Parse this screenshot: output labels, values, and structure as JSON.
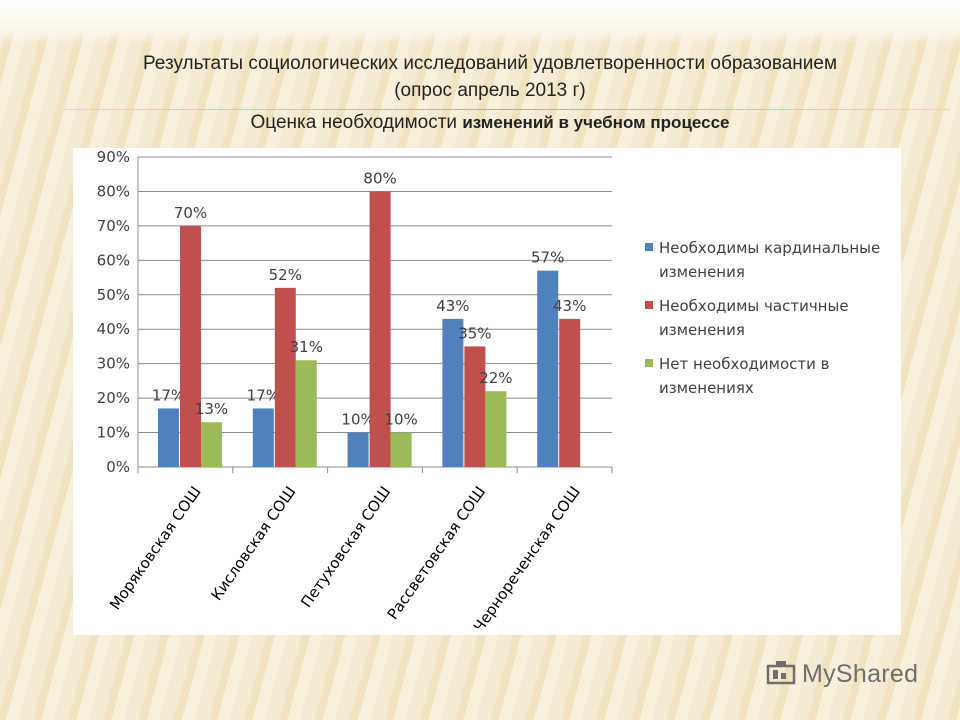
{
  "slide": {
    "title_line1": "Результаты социологических исследований удовлетворенности образованием",
    "title_line2": "(опрос апрель 2013 г)",
    "subtitle_plain": "Оценка необходимости ",
    "subtitle_bold": "изменений в учебном процессе"
  },
  "watermark": {
    "text": "MyShared",
    "icon": "myshared-logo-icon"
  },
  "chart_data": {
    "type": "bar",
    "title": "",
    "xlabel": "",
    "ylabel": "",
    "ylim": [
      0,
      0.9
    ],
    "yticks": [
      0,
      0.1,
      0.2,
      0.3,
      0.4,
      0.5,
      0.6,
      0.7,
      0.8,
      0.9
    ],
    "ytick_labels": [
      "0%",
      "10%",
      "20%",
      "30%",
      "40%",
      "50%",
      "60%",
      "70%",
      "80%",
      "90%"
    ],
    "grid": true,
    "legend_position": "right",
    "categories": [
      "Моряковская СОШ",
      "Кисловская СОШ",
      "Петуховская СОШ",
      "Рассветовская СОШ",
      "Чернореченская СОШ"
    ],
    "series": [
      {
        "name": "Необходимы кардинальные изменения",
        "color": "#4f81bd",
        "values": [
          0.17,
          0.17,
          0.1,
          0.43,
          0.57
        ],
        "labels": [
          "17%",
          "17%",
          "10%",
          "43%",
          "57%"
        ]
      },
      {
        "name": "Необходимы частичные изменения",
        "color": "#c0504d",
        "values": [
          0.7,
          0.52,
          0.8,
          0.35,
          0.43
        ],
        "labels": [
          "70%",
          "52%",
          "80%",
          "35%",
          "43%"
        ]
      },
      {
        "name": "Нет необходимости в изменениях",
        "color": "#9bbb59",
        "values": [
          0.13,
          0.31,
          0.1,
          0.22,
          null
        ],
        "labels": [
          "13%",
          "31%",
          "10%",
          "22%",
          null
        ]
      }
    ]
  }
}
